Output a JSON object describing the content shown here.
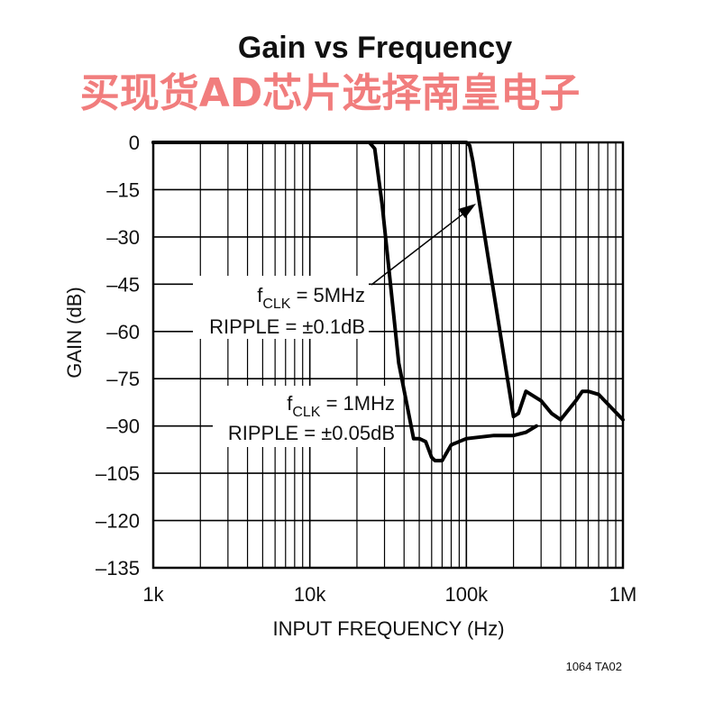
{
  "watermark": "买现货AD芯片选择南皇电子",
  "figure_id": "1064 TA02",
  "chart_data": {
    "type": "line",
    "title": "Gain vs Frequency",
    "xlabel": "INPUT FREQUENCY (Hz)",
    "ylabel": "GAIN (dB)",
    "x_scale": "log",
    "xlim": [
      1000,
      1000000
    ],
    "ylim": [
      -135,
      0
    ],
    "x_ticks": [
      1000,
      10000,
      100000,
      1000000
    ],
    "x_tick_labels": [
      "1k",
      "10k",
      "100k",
      "1M"
    ],
    "y_ticks": [
      0,
      -15,
      -30,
      -45,
      -60,
      -75,
      -90,
      -105,
      -120,
      -135
    ],
    "y_tick_labels": [
      "0",
      "–15",
      "–30",
      "–45",
      "–60",
      "–75",
      "–90",
      "–105",
      "–120",
      "–135"
    ],
    "grid": true,
    "series": [
      {
        "annotation": [
          "f",
          "CLK",
          " = 5MHz",
          "RIPPLE = ±0.1dB"
        ],
        "x": [
          1000,
          90000,
          100000,
          105000,
          110000,
          200000,
          215000,
          240000,
          300000,
          350000,
          400000,
          500000,
          550000,
          600000,
          700000,
          800000,
          1000000
        ],
        "y": [
          0,
          0,
          0,
          -1,
          -6,
          -87,
          -86,
          -79,
          -82,
          -86,
          -88,
          -82,
          -79,
          -79,
          -80,
          -83,
          -88
        ]
      },
      {
        "annotation": [
          "f",
          "CLK",
          " = 1MHz",
          "RIPPLE = ±0.05dB"
        ],
        "x": [
          1000,
          24000,
          26000,
          29000,
          37000,
          46000,
          50000,
          55000,
          60000,
          63000,
          70000,
          80000,
          100000,
          150000,
          200000,
          240000,
          280000
        ],
        "y": [
          0,
          0,
          -2,
          -20,
          -70,
          -94,
          -94,
          -95,
          -100,
          -101,
          -101,
          -96,
          -94,
          -93,
          -93,
          -92,
          -90
        ]
      }
    ]
  }
}
